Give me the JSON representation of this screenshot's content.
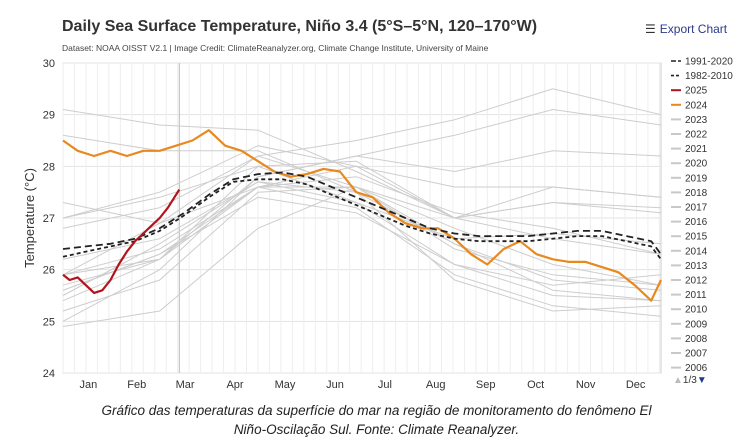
{
  "header": {
    "title": "Daily Sea Surface Temperature, Niño 3.4 (5°S–5°N, 120–170°W)",
    "subtitle": "Dataset: NOAA OISST V2.1 | Image Credit: ClimateReanalyzer.org, Climate Change Institute, University of Maine",
    "export_label": "Export Chart"
  },
  "caption": {
    "line1": "Gráfico das temperaturas da superfície do mar na região de monitoramento do fenômeno El",
    "line2": "Niño-Oscilação Sul. Fonte: Climate Reanalyzer."
  },
  "legend_pager": {
    "up_icon": "triangle-up-icon",
    "page": "1/3",
    "down_icon": "triangle-down-icon"
  },
  "chart_data": {
    "type": "line",
    "ylabel": "Temperature (°C)",
    "xlabel": "",
    "ylim": [
      24,
      30
    ],
    "yticks": [
      24,
      25,
      26,
      27,
      28,
      29,
      30
    ],
    "x_unit": "day of year",
    "xlim": [
      1,
      366
    ],
    "months": [
      "Jan",
      "Feb",
      "Mar",
      "Apr",
      "May",
      "Jun",
      "Jul",
      "Aug",
      "Sep",
      "Oct",
      "Nov",
      "Dec"
    ],
    "grid": true,
    "legend_position": "right",
    "series": [
      {
        "name": "1991-2020",
        "color": "#222222",
        "style": "long-dash",
        "x": [
          1,
          15,
          30,
          45,
          60,
          75,
          90,
          105,
          120,
          135,
          150,
          165,
          180,
          195,
          210,
          225,
          240,
          255,
          270,
          285,
          300,
          315,
          330,
          345,
          360,
          366
        ],
        "y": [
          26.4,
          26.45,
          26.5,
          26.6,
          26.8,
          27.1,
          27.45,
          27.75,
          27.85,
          27.88,
          27.8,
          27.6,
          27.4,
          27.2,
          27.0,
          26.8,
          26.7,
          26.65,
          26.65,
          26.65,
          26.7,
          26.75,
          26.75,
          26.65,
          26.55,
          26.3
        ]
      },
      {
        "name": "1982-2010",
        "color": "#222222",
        "style": "short-dash",
        "x": [
          1,
          15,
          30,
          45,
          60,
          75,
          90,
          105,
          120,
          135,
          150,
          165,
          180,
          195,
          210,
          225,
          240,
          255,
          270,
          285,
          300,
          315,
          330,
          345,
          360,
          366
        ],
        "y": [
          26.25,
          26.35,
          26.45,
          26.55,
          26.75,
          27.05,
          27.4,
          27.7,
          27.75,
          27.75,
          27.65,
          27.45,
          27.25,
          27.05,
          26.85,
          26.7,
          26.6,
          26.55,
          26.55,
          26.55,
          26.6,
          26.65,
          26.65,
          26.55,
          26.45,
          26.2
        ]
      },
      {
        "name": "2025",
        "color": "#b3131b",
        "style": "solid",
        "x": [
          1,
          5,
          10,
          15,
          20,
          25,
          30,
          35,
          40,
          45,
          50,
          55,
          60,
          65,
          70,
          72
        ],
        "y": [
          25.9,
          25.8,
          25.85,
          25.7,
          25.55,
          25.6,
          25.8,
          26.1,
          26.35,
          26.55,
          26.7,
          26.85,
          27.0,
          27.2,
          27.45,
          27.55
        ]
      },
      {
        "name": "2024",
        "color": "#e8891e",
        "style": "solid",
        "x": [
          1,
          10,
          20,
          30,
          40,
          50,
          60,
          70,
          80,
          90,
          100,
          110,
          120,
          130,
          140,
          150,
          160,
          170,
          180,
          190,
          200,
          210,
          220,
          230,
          240,
          250,
          260,
          270,
          280,
          290,
          300,
          310,
          320,
          330,
          340,
          350,
          360,
          366
        ],
        "y": [
          28.5,
          28.3,
          28.2,
          28.3,
          28.2,
          28.3,
          28.3,
          28.4,
          28.5,
          28.7,
          28.4,
          28.3,
          28.1,
          27.9,
          27.8,
          27.85,
          27.95,
          27.9,
          27.5,
          27.4,
          27.1,
          26.9,
          26.8,
          26.8,
          26.6,
          26.3,
          26.1,
          26.4,
          26.55,
          26.3,
          26.2,
          26.15,
          26.15,
          26.05,
          25.95,
          25.7,
          25.4,
          25.8
        ]
      }
    ],
    "legend_entries": [
      {
        "label": "1991-2020",
        "color": "#222222",
        "style": "long-dash"
      },
      {
        "label": "1982-2010",
        "color": "#222222",
        "style": "short-dash"
      },
      {
        "label": "2025",
        "color": "#b3131b",
        "style": "solid"
      },
      {
        "label": "2024",
        "color": "#e8891e",
        "style": "solid"
      },
      {
        "label": "2023",
        "color": "#c8c8c8",
        "style": "solid"
      },
      {
        "label": "2022",
        "color": "#c8c8c8",
        "style": "solid"
      },
      {
        "label": "2021",
        "color": "#c8c8c8",
        "style": "solid"
      },
      {
        "label": "2020",
        "color": "#c8c8c8",
        "style": "solid"
      },
      {
        "label": "2019",
        "color": "#c8c8c8",
        "style": "solid"
      },
      {
        "label": "2018",
        "color": "#c8c8c8",
        "style": "solid"
      },
      {
        "label": "2017",
        "color": "#c8c8c8",
        "style": "solid"
      },
      {
        "label": "2016",
        "color": "#c8c8c8",
        "style": "solid"
      },
      {
        "label": "2015",
        "color": "#c8c8c8",
        "style": "solid"
      },
      {
        "label": "2014",
        "color": "#c8c8c8",
        "style": "solid"
      },
      {
        "label": "2013",
        "color": "#c8c8c8",
        "style": "solid"
      },
      {
        "label": "2012",
        "color": "#c8c8c8",
        "style": "solid"
      },
      {
        "label": "2011",
        "color": "#c8c8c8",
        "style": "solid"
      },
      {
        "label": "2010",
        "color": "#c8c8c8",
        "style": "solid"
      },
      {
        "label": "2009",
        "color": "#c8c8c8",
        "style": "solid"
      },
      {
        "label": "2008",
        "color": "#c8c8c8",
        "style": "solid"
      },
      {
        "label": "2007",
        "color": "#c8c8c8",
        "style": "solid"
      },
      {
        "label": "2006",
        "color": "#c8c8c8",
        "style": "solid"
      }
    ],
    "background_years": [
      {
        "year": "2023",
        "x": [
          1,
          60,
          120,
          180,
          240,
          300,
          366
        ],
        "y": [
          25.0,
          26.0,
          27.8,
          28.2,
          28.6,
          29.1,
          28.8
        ]
      },
      {
        "year": "2016",
        "x": [
          1,
          60,
          120,
          180,
          240,
          300,
          366
        ],
        "y": [
          29.1,
          28.8,
          28.7,
          27.9,
          27.0,
          26.6,
          26.3
        ]
      },
      {
        "year": "2015",
        "x": [
          1,
          60,
          120,
          180,
          240,
          300,
          366
        ],
        "y": [
          26.8,
          27.2,
          28.2,
          28.5,
          28.9,
          29.5,
          29.0
        ]
      },
      {
        "year": "2010",
        "x": [
          1,
          60,
          120,
          180,
          240,
          300,
          366
        ],
        "y": [
          28.6,
          28.3,
          28.3,
          27.5,
          25.8,
          25.2,
          25.3
        ]
      },
      {
        "year": "2011",
        "x": [
          1,
          60,
          120,
          180,
          240,
          300,
          366
        ],
        "y": [
          25.2,
          25.8,
          27.5,
          27.6,
          26.5,
          25.6,
          25.4
        ]
      },
      {
        "year": "2008",
        "x": [
          1,
          60,
          120,
          180,
          240,
          300,
          366
        ],
        "y": [
          24.9,
          25.2,
          26.8,
          27.6,
          26.8,
          26.1,
          25.7
        ]
      },
      {
        "year": "2009",
        "x": [
          1,
          60,
          120,
          180,
          240,
          300,
          366
        ],
        "y": [
          25.4,
          26.2,
          27.8,
          28.2,
          27.9,
          28.3,
          28.2
        ]
      },
      {
        "year": "2021",
        "x": [
          1,
          60,
          120,
          180,
          240,
          300,
          366
        ],
        "y": [
          25.5,
          26.5,
          27.7,
          27.5,
          26.5,
          25.8,
          25.6
        ]
      },
      {
        "year": "2022",
        "x": [
          1,
          60,
          120,
          180,
          240,
          300,
          366
        ],
        "y": [
          25.6,
          26.3,
          27.4,
          27.1,
          26.1,
          25.7,
          25.9
        ]
      },
      {
        "year": "2020",
        "x": [
          1,
          60,
          120,
          180,
          240,
          300,
          366
        ],
        "y": [
          27.0,
          27.4,
          28.0,
          27.3,
          26.1,
          25.5,
          25.4
        ]
      },
      {
        "year": "2019",
        "x": [
          1,
          60,
          120,
          180,
          240,
          300,
          366
        ],
        "y": [
          27.0,
          27.5,
          28.4,
          28.0,
          27.0,
          27.3,
          27.1
        ]
      },
      {
        "year": "2018",
        "x": [
          1,
          60,
          120,
          180,
          240,
          300,
          366
        ],
        "y": [
          25.7,
          26.2,
          27.6,
          27.6,
          27.0,
          27.6,
          27.4
        ]
      },
      {
        "year": "2017",
        "x": [
          1,
          60,
          120,
          180,
          240,
          300,
          366
        ],
        "y": [
          25.9,
          26.9,
          28.2,
          27.6,
          26.4,
          25.9,
          25.7
        ]
      },
      {
        "year": "2014",
        "x": [
          1,
          60,
          120,
          180,
          240,
          300,
          366
        ],
        "y": [
          25.9,
          26.2,
          28.0,
          28.1,
          27.0,
          27.3,
          27.2
        ]
      },
      {
        "year": "2013",
        "x": [
          1,
          60,
          120,
          180,
          240,
          300,
          366
        ],
        "y": [
          26.2,
          26.6,
          27.7,
          27.3,
          26.6,
          26.7,
          26.5
        ]
      },
      {
        "year": "2012",
        "x": [
          1,
          60,
          120,
          180,
          240,
          300,
          366
        ],
        "y": [
          25.9,
          26.4,
          27.6,
          27.8,
          27.1,
          26.8,
          26.3
        ]
      },
      {
        "year": "2007",
        "x": [
          1,
          60,
          120,
          180,
          240,
          300,
          366
        ],
        "y": [
          27.3,
          26.9,
          27.6,
          27.2,
          25.9,
          25.3,
          25.1
        ]
      },
      {
        "year": "2006",
        "x": [
          1,
          60,
          120,
          180,
          240,
          300,
          366
        ],
        "y": [
          25.6,
          26.3,
          27.6,
          28.0,
          27.6,
          27.6,
          27.4
        ]
      }
    ]
  }
}
